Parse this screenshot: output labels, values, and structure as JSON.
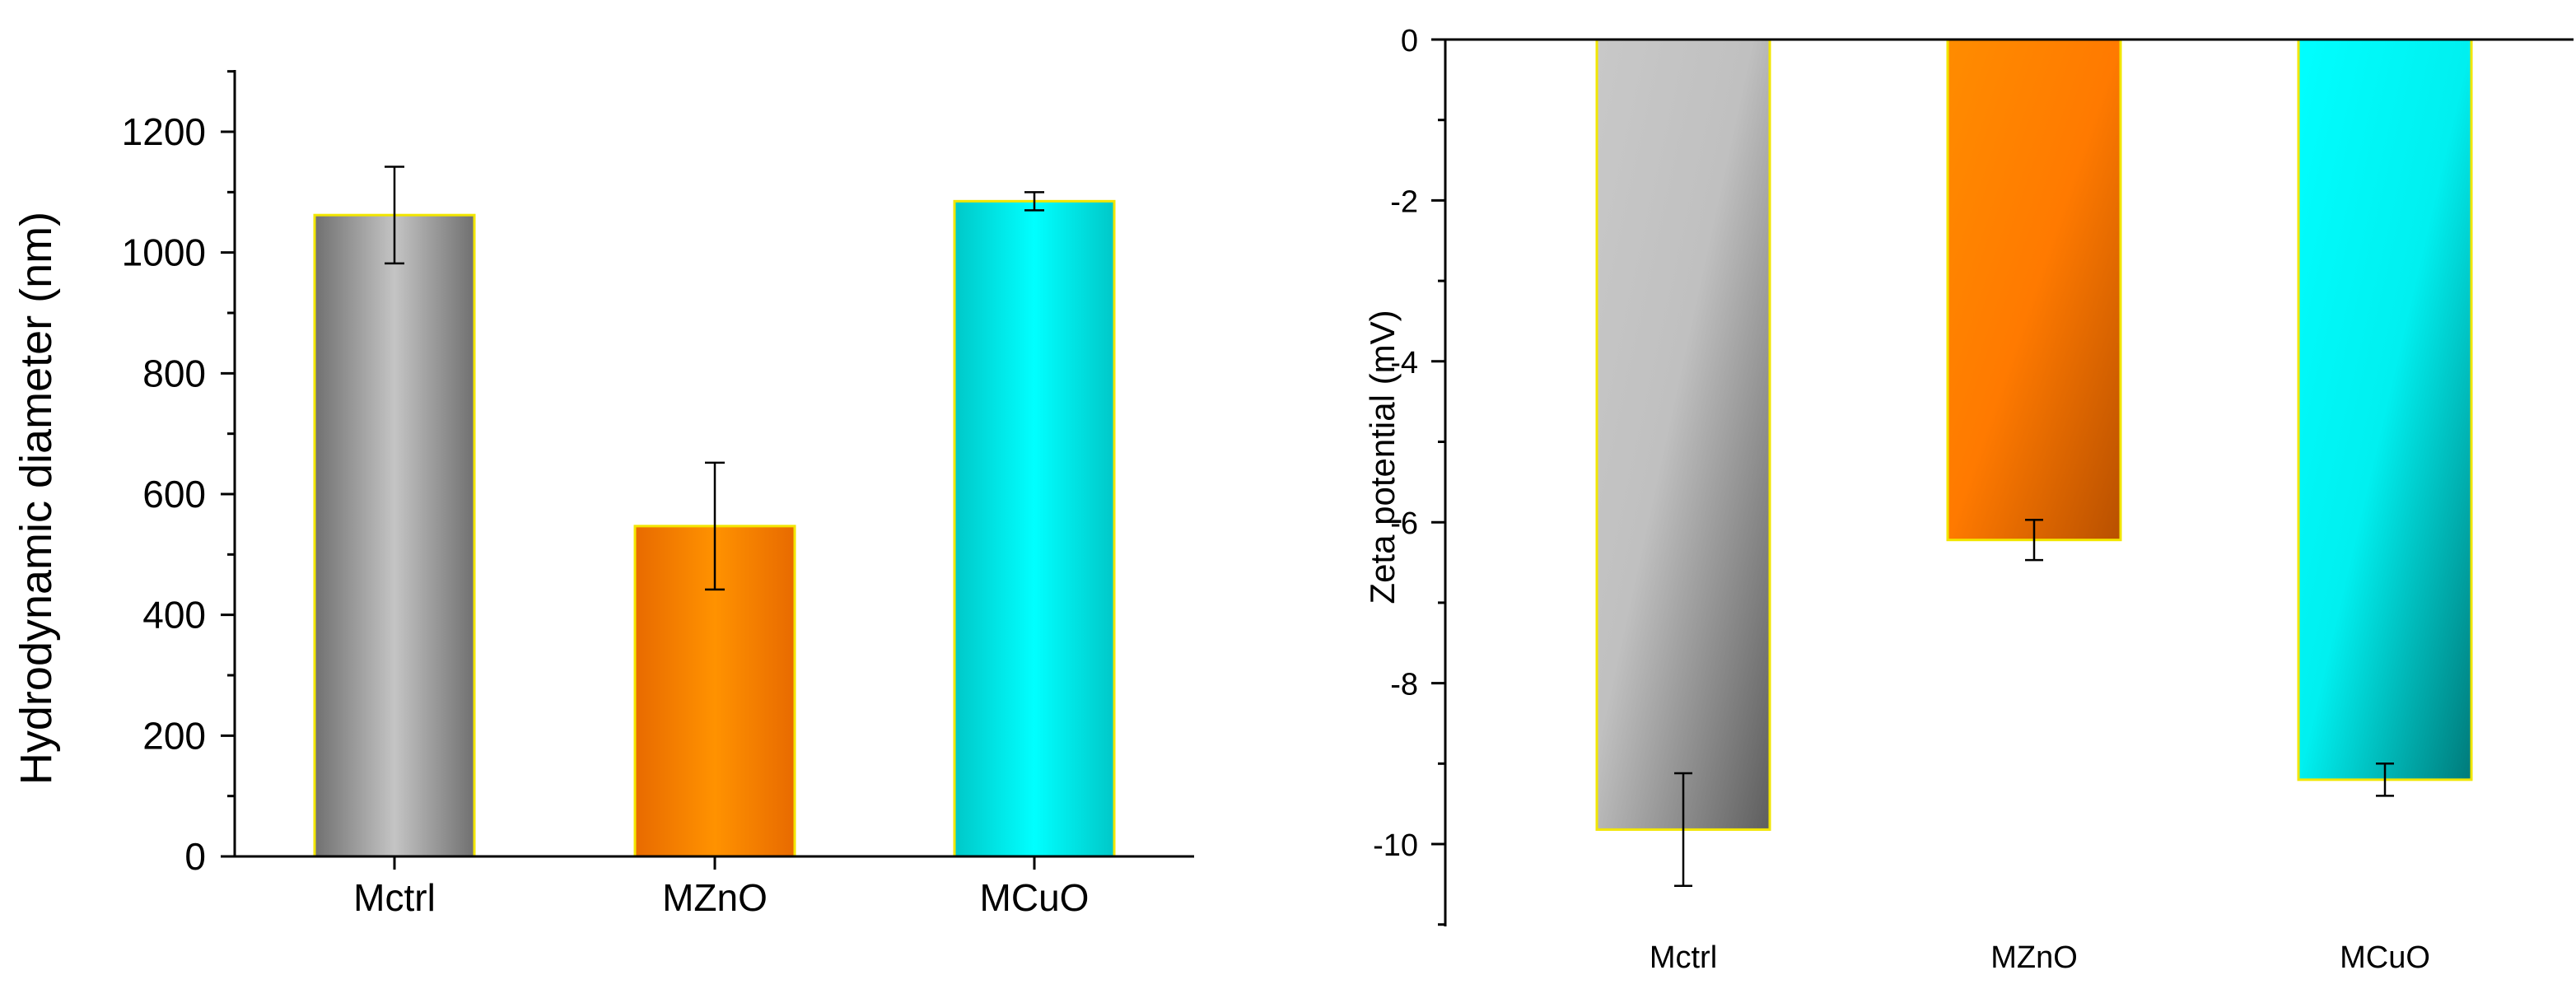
{
  "chart_data": [
    {
      "type": "bar",
      "title": "",
      "xlabel": "",
      "ylabel": "Hydrodynamic diameter (nm)",
      "ylim": [
        0,
        1300
      ],
      "yticks": [
        0,
        200,
        400,
        600,
        800,
        1000,
        1200
      ],
      "categories": [
        "Mctrl",
        "MZnO",
        "MCuO"
      ],
      "values": [
        1062,
        547,
        1085
      ],
      "errors": [
        80,
        105,
        15
      ],
      "colors": [
        "#8a8a8a",
        "#ff8200",
        "#00e5e5"
      ],
      "grid": false,
      "legend": "none"
    },
    {
      "type": "bar",
      "title": "",
      "xlabel": "",
      "ylabel": "Zeta potential (mV)",
      "ylim": [
        -11,
        0
      ],
      "yticks": [
        0,
        -2,
        -4,
        -6,
        -8,
        -10
      ],
      "categories": [
        "Mctrl",
        "MZnO",
        "MCuO"
      ],
      "values": [
        -9.82,
        -6.22,
        -9.2
      ],
      "errors": [
        0.7,
        0.25,
        0.2
      ],
      "colors": [
        "#8a8a8a",
        "#ff8200",
        "#00e5e5"
      ],
      "grid": false,
      "legend": "none"
    }
  ]
}
